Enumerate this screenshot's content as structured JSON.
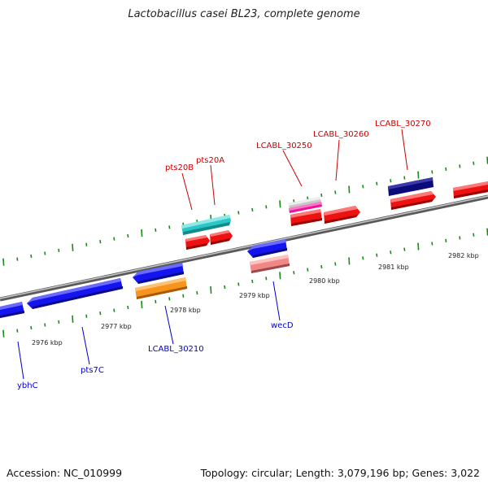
{
  "title": "Lactobacillus casei BL23, complete genome",
  "footer": {
    "accession": "Accession: NC_010999",
    "topology": "Topology: circular; Length: 3,079,196 bp; Genes: 3,022"
  },
  "colors": {
    "backbone": "#888888",
    "tick": "#1a8a1a",
    "label_forward": "#cc0000",
    "label_reverse": "#0000cc",
    "scale_text": "#222222"
  },
  "scale_labels": [
    "2976 kbp",
    "2977 kbp",
    "2978 kbp",
    "2979 kbp",
    "2980 kbp",
    "2981 kbp",
    "2982 kbp"
  ],
  "genes_forward": [
    {
      "color": "cyan",
      "label": ""
    },
    {
      "color": "red",
      "label": "pts20B"
    },
    {
      "color": "red",
      "label": "pts20A"
    },
    {
      "color": "silver",
      "label": ""
    },
    {
      "color": "magenta",
      "label": ""
    },
    {
      "color": "red",
      "label": "LCABL_30250"
    },
    {
      "color": "red",
      "label": "LCABL_30260"
    },
    {
      "color": "navy",
      "label": ""
    },
    {
      "color": "red",
      "label": "LCABL_30270"
    },
    {
      "color": "red",
      "label": ""
    }
  ],
  "genes_reverse": [
    {
      "color": "blue",
      "label": "ybhC"
    },
    {
      "color": "blue",
      "label": "pts7C"
    },
    {
      "color": "blue",
      "label": ""
    },
    {
      "color": "orange",
      "label": "LCABL_30210"
    },
    {
      "color": "blue",
      "label": ""
    },
    {
      "color": "salmon",
      "label": "wecD"
    }
  ]
}
